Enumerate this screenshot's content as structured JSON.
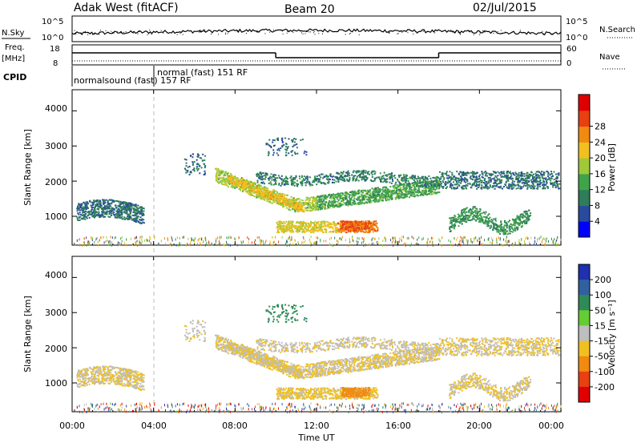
{
  "header": {
    "station": "Adak West (fitACF)",
    "beam": "Beam 20",
    "date": "02/Jul/2015"
  },
  "strip": {
    "left_labels": [
      "N.Sky",
      "Freq.",
      "[MHz]",
      "CPID"
    ],
    "left_ticks_sky": [
      "10^5",
      "10^0"
    ],
    "left_ticks_freq": [
      "18",
      "8"
    ],
    "right_labels": [
      "N.Search",
      "Nave"
    ],
    "right_ticks_search": [
      "10^5",
      "10^0"
    ],
    "right_ticks_nave": [
      "60",
      "0"
    ],
    "cpid_texts": [
      "normalsound (fast) 157 RF",
      "normal (fast) 151 RF"
    ],
    "freq_steps": [
      {
        "from": 0,
        "to": 10,
        "level": "high"
      },
      {
        "from": 10,
        "to": 18,
        "level": "low"
      },
      {
        "from": 18,
        "to": 24,
        "level": "high"
      }
    ]
  },
  "xaxis": {
    "label": "Time UT",
    "ticks": [
      "00:00",
      "04:00",
      "08:00",
      "12:00",
      "16:00",
      "20:00",
      "00:00"
    ],
    "cpid_change_hour": 4
  },
  "power_panel": {
    "ylabel": "Slant Range [km]",
    "yticks": [
      "1000",
      "2000",
      "3000",
      "4000"
    ],
    "colorbar_label": "Power [dB]",
    "colorbar_ticks": [
      "4",
      "8",
      "12",
      "16",
      "20",
      "24",
      "28"
    ],
    "colorbar_colors": [
      "#0000ff",
      "#2a4a9e",
      "#2e7d5b",
      "#3fa34a",
      "#9fc93a",
      "#f0c020",
      "#f08a10",
      "#e84010",
      "#e00000"
    ]
  },
  "velocity_panel": {
    "ylabel": "Slant Range [km]",
    "yticks": [
      "1000",
      "2000",
      "3000",
      "4000"
    ],
    "colorbar_label": "Velocity [m s⁻¹]",
    "colorbar_ticks": [
      "200",
      "100",
      "50",
      "15",
      "-15",
      "-50",
      "-100",
      "-200"
    ],
    "colorbar_colors": [
      "#2030b0",
      "#3060a0",
      "#2e8b57",
      "#66cc33",
      "#bebebe",
      "#f0c020",
      "#f08a10",
      "#e84010",
      "#e00000"
    ]
  },
  "chart_data": {
    "type": "heatmap",
    "title": "Adak West (fitACF)  Beam 20  02/Jul/2015",
    "xlabel": "Time UT",
    "ylabel": "Slant Range [km]",
    "xlim": [
      0,
      24
    ],
    "ylim": [
      180,
      4600
    ],
    "scatter_regions": [
      {
        "name": "early-band",
        "t": [
          0.2,
          3.5
        ],
        "range": [
          650,
          1400
        ],
        "power_db": 8,
        "velocity": -15
      },
      {
        "name": "main-arc-upper",
        "t": [
          7.0,
          18.0
        ],
        "range": [
          1200,
          2400
        ],
        "power_db": 14,
        "velocity": -15
      },
      {
        "name": "main-arc-core",
        "t": [
          7.5,
          11.5
        ],
        "range": [
          1200,
          2200
        ],
        "power_db": 18,
        "velocity": -15
      },
      {
        "name": "lower-feature",
        "t": [
          10.0,
          15.0
        ],
        "range": [
          500,
          1000
        ],
        "power_db": 24,
        "velocity": -50
      },
      {
        "name": "late-upper",
        "t": [
          18.0,
          23.9
        ],
        "range": [
          1800,
          2400
        ],
        "power_db": 8,
        "velocity": -15
      },
      {
        "name": "late-lower",
        "t": [
          18.5,
          22.5
        ],
        "range": [
          600,
          1300
        ],
        "power_db": 10,
        "velocity": -15
      },
      {
        "name": "ground-clutter",
        "t": [
          0,
          24
        ],
        "range": [
          180,
          400
        ],
        "power_db": 12,
        "velocity": 0
      }
    ]
  }
}
